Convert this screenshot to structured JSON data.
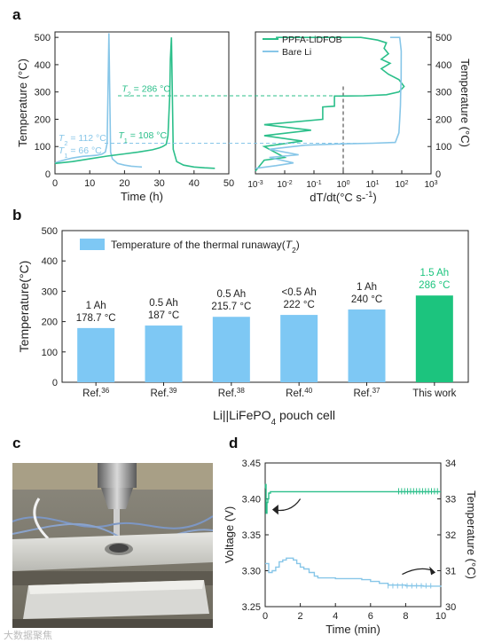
{
  "panels": {
    "a": "a",
    "b": "b",
    "c": "c",
    "d": "d"
  },
  "colors": {
    "green": "#2bbf8a",
    "blue": "#87c6e8",
    "bar_blue": "#7ec8f4",
    "bar_green": "#1cc47e",
    "axis": "#222222"
  },
  "watermark": "大数据聚焦",
  "chart_data": [
    {
      "id": "a-left",
      "type": "line",
      "xlabel": "Time (h)",
      "ylabel": "Temperature (°C)",
      "xlim": [
        0,
        50
      ],
      "ylim": [
        0,
        520
      ],
      "xticks": [
        0,
        10,
        20,
        30,
        40,
        50
      ],
      "yticks": [
        0,
        100,
        200,
        300,
        400,
        500
      ],
      "series": [
        {
          "name": "Bare Li",
          "color": "#87c6e8",
          "x": [
            0,
            1,
            3,
            5,
            8,
            10,
            12,
            13.5,
            14.5,
            15,
            15.3,
            15.5,
            16,
            16.5,
            18,
            20,
            22,
            24,
            25
          ],
          "y": [
            40,
            45,
            52,
            58,
            64,
            66,
            68,
            72,
            80,
            112,
            350,
            515,
            80,
            55,
            38,
            32,
            28,
            26,
            25
          ]
        },
        {
          "name": "PPFA-LiDFOB",
          "color": "#2bbf8a",
          "x": [
            0,
            5,
            10,
            15,
            20,
            24,
            28,
            30,
            31,
            32,
            32.5,
            33,
            33.2,
            33.5,
            34,
            35,
            37,
            40,
            43,
            46
          ],
          "y": [
            38,
            45,
            55,
            65,
            73,
            80,
            88,
            95,
            100,
            108,
            140,
            286,
            420,
            500,
            90,
            45,
            32,
            25,
            22,
            20
          ]
        }
      ],
      "annotations": [
        {
          "text": "T2 = 286 °C",
          "sym": "T",
          "sub": "2",
          "rest": " = 286 °C",
          "x": 19.2,
          "y": 300,
          "color": "#2bbf8a"
        },
        {
          "text": "T1 = 108 °C",
          "sym": "T",
          "sub": "1",
          "rest": " = 108 °C",
          "x": 18.2,
          "y": 130,
          "color": "#2bbf8a"
        },
        {
          "text": "T2 = 112 °C",
          "sym": "T",
          "sub": "2",
          "rest": " = 112 °C",
          "x": 1,
          "y": 120,
          "color": "#87c6e8"
        },
        {
          "text": "T1 = 66 °C",
          "sym": "T",
          "sub": "1",
          "rest": " = 66 °C",
          "x": 1,
          "y": 74,
          "color": "#87c6e8"
        }
      ]
    },
    {
      "id": "a-right",
      "type": "line",
      "xlabel": "dT/dt(°C s-1)",
      "ylabel": "Temperature (°C)",
      "xscale": "log",
      "xlim": [
        0.001,
        1000
      ],
      "ylim": [
        0,
        520
      ],
      "xticks": [
        0.001,
        0.01,
        0.1,
        1,
        10,
        100,
        1000
      ],
      "xticklabels": [
        "10-3",
        "10-2",
        "10-1",
        "100",
        "101",
        "102",
        "103"
      ],
      "yticks": [
        0,
        100,
        200,
        300,
        400,
        500
      ],
      "legend": [
        "PPFA-LiDFOB",
        "Bare Li"
      ],
      "legend_position": "top-left",
      "series": [
        {
          "name": "PPFA-LiDFOB",
          "color": "#2bbf8a",
          "x": [
            0.001,
            0.002,
            0.01,
            0.002,
            0.04,
            0.002,
            0.08,
            0.002,
            0.2,
            0.2,
            0.5,
            0.5,
            5,
            30,
            80,
            120,
            80,
            35,
            20,
            40,
            20,
            35,
            25,
            30,
            15,
            8,
            4,
            3,
            0.005
          ],
          "y": [
            10,
            50,
            60,
            100,
            120,
            140,
            160,
            180,
            200,
            245,
            248,
            285,
            286,
            290,
            300,
            320,
            345,
            365,
            385,
            405,
            420,
            440,
            460,
            480,
            490,
            495,
            500,
            500,
            500
          ]
        },
        {
          "name": "Bare Li",
          "color": "#87c6e8",
          "x": [
            0.001,
            0.005,
            0.02,
            0.003,
            0.03,
            0.003,
            0.05,
            1,
            10,
            60,
            80,
            85,
            90,
            92,
            95,
            96,
            85,
            40
          ],
          "y": [
            20,
            30,
            40,
            60,
            70,
            90,
            105,
            110,
            112,
            115,
            150,
            200,
            250,
            300,
            350,
            450,
            500,
            500
          ]
        }
      ],
      "reference_line": {
        "x": 1,
        "style": "dashed"
      }
    },
    {
      "id": "b",
      "type": "bar",
      "ylabel": "Temperature(°C)",
      "xlabel": "Li||LiFePO4 pouch cell",
      "ylim": [
        0,
        500
      ],
      "yticks": [
        0,
        100,
        200,
        300,
        400,
        500
      ],
      "legend": [
        "Temperature of the thermal runaway(T2)"
      ],
      "legend_position": "top-left",
      "categories": [
        {
          "label": "Ref.36",
          "base": "Ref.",
          "sup": "36"
        },
        {
          "label": "Ref.39",
          "base": "Ref.",
          "sup": "39"
        },
        {
          "label": "Ref.38",
          "base": "Ref.",
          "sup": "38"
        },
        {
          "label": "Ref.40",
          "base": "Ref.",
          "sup": "40"
        },
        {
          "label": "Ref.37",
          "base": "Ref.",
          "sup": "37"
        },
        {
          "label": "This work",
          "base": "This work",
          "sup": ""
        }
      ],
      "values": [
        178.7,
        187,
        215.7,
        222,
        240,
        286
      ],
      "bar_labels": [
        [
          "1 Ah",
          "178.7 °C"
        ],
        [
          "0.5 Ah",
          "187 °C"
        ],
        [
          "0.5 Ah",
          "215.7 °C"
        ],
        [
          "<0.5 Ah",
          "222 °C"
        ],
        [
          "1 Ah",
          "240 °C"
        ],
        [
          "1.5 Ah",
          "286 °C"
        ]
      ]
    },
    {
      "id": "d",
      "type": "line",
      "xlabel": "Time (min)",
      "ylabel": "Voltage (V)",
      "ylabel_right": "Temperature (°C)",
      "xlim": [
        0,
        10
      ],
      "ylim": [
        3.25,
        3.45
      ],
      "ylim_right": [
        30,
        34
      ],
      "xticks": [
        0,
        2,
        4,
        6,
        8,
        10
      ],
      "yticks": [
        3.25,
        3.3,
        3.35,
        3.4,
        3.45
      ],
      "yticks_right": [
        30,
        31,
        32,
        33,
        34
      ],
      "series": [
        {
          "name": "Voltage",
          "axis": "left",
          "color": "#2bbf8a",
          "x": [
            0,
            0.02,
            0.05,
            0.1,
            0.15,
            0.2,
            0.3,
            0.5,
            1,
            3,
            5,
            7,
            8,
            9,
            10
          ],
          "y": [
            3.415,
            3.42,
            3.38,
            3.395,
            3.4,
            3.408,
            3.41,
            3.41,
            3.41,
            3.41,
            3.41,
            3.41,
            3.41,
            3.41,
            3.41
          ]
        },
        {
          "name": "Temperature",
          "axis": "right",
          "color": "#87c6e8",
          "x": [
            0,
            0.2,
            0.4,
            0.6,
            0.8,
            1,
            1.2,
            1.4,
            1.6,
            1.8,
            2,
            2.2,
            2.5,
            2.8,
            3,
            3.5,
            4,
            5,
            5.5,
            6,
            6.5,
            7,
            8,
            9,
            10
          ],
          "y": [
            31.2,
            30.95,
            31.0,
            31.1,
            31.25,
            31.3,
            31.35,
            31.35,
            31.3,
            31.2,
            31.1,
            31.05,
            30.95,
            30.85,
            30.8,
            30.8,
            30.78,
            30.78,
            30.75,
            30.7,
            30.65,
            30.6,
            30.58,
            30.57,
            30.55
          ]
        }
      ]
    }
  ]
}
